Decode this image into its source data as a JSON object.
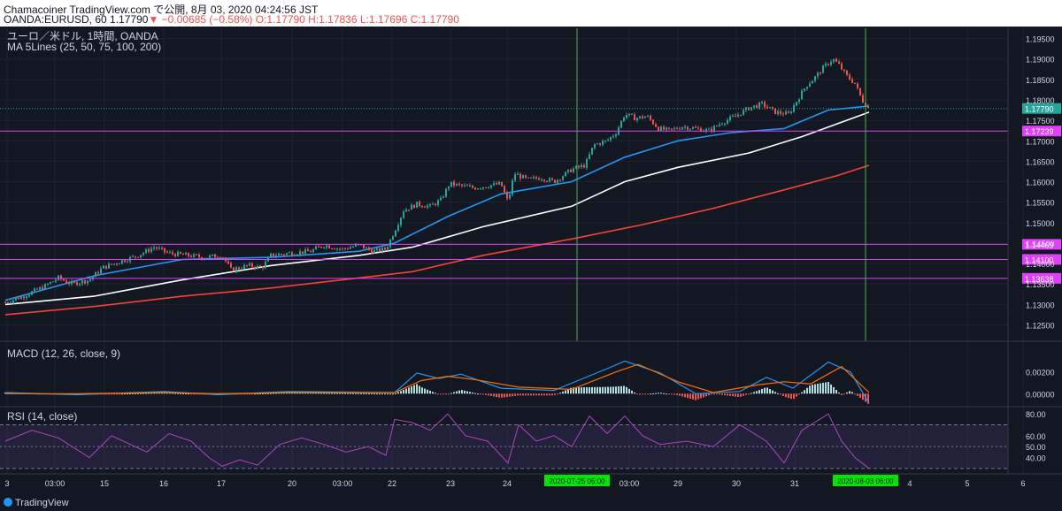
{
  "header": {
    "line1": "Chamacoiner TradingView.com で公開, 8月 03, 2020 04:24:56 JST",
    "symbol": "OANDA:EURUSD, 60",
    "last": "1.17790",
    "arrow": "▼",
    "change": "−0.00685 (−0.58%)",
    "ohlc": "O:1.17790 H:1.17836 L:1.17696 C:1.17790"
  },
  "legend": {
    "title": "ユーロ／米ドル, 1時間, OANDA",
    "ma": "MA 5Lines (25, 50, 75, 100, 200)",
    "macd": "MACD (12, 26, close, 9)",
    "rsi": "RSI (14, close)"
  },
  "footer": {
    "brand": "TradingView"
  },
  "chart_data": [
    {
      "type": "candlestick",
      "symbol": "EUR/USD",
      "timeframe": "1h",
      "y_ticks": [
        "1.19500",
        "1.19000",
        "1.18500",
        "1.18000",
        "1.17500",
        "1.17000",
        "1.16500",
        "1.16000",
        "1.15500",
        "1.15000",
        "1.14500",
        "1.14000",
        "1.13500",
        "1.13000",
        "1.12500"
      ],
      "ylim": [
        1.121,
        1.1975
      ],
      "x_ticks": [
        "3",
        "03:00",
        "15",
        "16",
        "17",
        "20",
        "03:00",
        "22",
        "23",
        "24",
        "03:00",
        "29",
        "30",
        "31",
        "4",
        "5",
        "6"
      ],
      "last_price": 1.1779,
      "horizontal_lines": [
        {
          "price": 1.17239,
          "color": "#e040fb"
        },
        {
          "price": 1.14469,
          "color": "#e040fb"
        },
        {
          "price": 1.141,
          "color": "#e040fb"
        },
        {
          "price": 1.13638,
          "color": "#e040fb"
        }
      ],
      "price_labels": [
        "1.17790",
        "1.17239",
        "1.14469",
        "1.14100",
        "1.13638"
      ],
      "vertical_markers": [
        {
          "label": "2020-07-25  05:00",
          "color": "#4caf50"
        },
        {
          "label": "2020-08-03  06:00",
          "color": "#4caf50"
        }
      ],
      "close_path": [
        [
          0,
          1.1305
        ],
        [
          20,
          1.132
        ],
        [
          45,
          1.1345
        ],
        [
          60,
          1.1365
        ],
        [
          75,
          1.135
        ],
        [
          95,
          1.136
        ],
        [
          110,
          1.139
        ],
        [
          130,
          1.1405
        ],
        [
          150,
          1.142
        ],
        [
          168,
          1.144
        ],
        [
          185,
          1.1425
        ],
        [
          205,
          1.142
        ],
        [
          225,
          1.1415
        ],
        [
          245,
          1.142
        ],
        [
          255,
          1.1385
        ],
        [
          275,
          1.1395
        ],
        [
          290,
          1.139
        ],
        [
          300,
          1.142
        ],
        [
          320,
          1.1425
        ],
        [
          345,
          1.143
        ],
        [
          360,
          1.1445
        ],
        [
          380,
          1.1435
        ],
        [
          400,
          1.1445
        ],
        [
          415,
          1.143
        ],
        [
          430,
          1.1435
        ],
        [
          440,
          1.148
        ],
        [
          450,
          1.153
        ],
        [
          465,
          1.1545
        ],
        [
          480,
          1.154
        ],
        [
          492,
          1.1555
        ],
        [
          502,
          1.1595
        ],
        [
          515,
          1.159
        ],
        [
          530,
          1.1585
        ],
        [
          545,
          1.159
        ],
        [
          560,
          1.1595
        ],
        [
          568,
          1.155
        ],
        [
          575,
          1.162
        ],
        [
          590,
          1.1605
        ],
        [
          605,
          1.161
        ],
        [
          620,
          1.16
        ],
        [
          630,
          1.1615
        ],
        [
          640,
          1.163
        ],
        [
          655,
          1.164
        ],
        [
          665,
          1.169
        ],
        [
          680,
          1.17
        ],
        [
          690,
          1.172
        ],
        [
          700,
          1.1765
        ],
        [
          712,
          1.1755
        ],
        [
          725,
          1.176
        ],
        [
          738,
          1.173
        ],
        [
          750,
          1.1725
        ],
        [
          765,
          1.1735
        ],
        [
          780,
          1.173
        ],
        [
          795,
          1.1725
        ],
        [
          810,
          1.1745
        ],
        [
          825,
          1.176
        ],
        [
          840,
          1.178
        ],
        [
          855,
          1.179
        ],
        [
          870,
          1.177
        ],
        [
          885,
          1.1765
        ],
        [
          895,
          1.18
        ],
        [
          905,
          1.1835
        ],
        [
          915,
          1.1855
        ],
        [
          925,
          1.188
        ],
        [
          935,
          1.19
        ],
        [
          942,
          1.1885
        ],
        [
          950,
          1.186
        ],
        [
          960,
          1.184
        ],
        [
          968,
          1.18
        ],
        [
          976,
          1.1779
        ]
      ],
      "ma_lines": [
        {
          "color": "#2196f3",
          "points": [
            [
              0,
              1.131
            ],
            [
              100,
              1.137
            ],
            [
              200,
              1.141
            ],
            [
              300,
              1.1415
            ],
            [
              400,
              1.143
            ],
            [
              440,
              1.145
            ],
            [
              500,
              1.1515
            ],
            [
              560,
              1.157
            ],
            [
              640,
              1.16
            ],
            [
              700,
              1.166
            ],
            [
              760,
              1.17
            ],
            [
              820,
              1.172
            ],
            [
              880,
              1.173
            ],
            [
              930,
              1.1775
            ],
            [
              976,
              1.1785
            ]
          ]
        },
        {
          "color": "#ffffff",
          "points": [
            [
              0,
              1.13
            ],
            [
              100,
              1.132
            ],
            [
              200,
              1.136
            ],
            [
              300,
              1.1395
            ],
            [
              400,
              1.142
            ],
            [
              460,
              1.144
            ],
            [
              540,
              1.149
            ],
            [
              640,
              1.154
            ],
            [
              700,
              1.16
            ],
            [
              760,
              1.1635
            ],
            [
              840,
              1.167
            ],
            [
              900,
              1.171
            ],
            [
              976,
              1.177
            ]
          ]
        },
        {
          "color": "#f44336",
          "points": [
            [
              0,
              1.1275
            ],
            [
              100,
              1.1295
            ],
            [
              200,
              1.132
            ],
            [
              300,
              1.134
            ],
            [
              400,
              1.1365
            ],
            [
              460,
              1.138
            ],
            [
              540,
              1.142
            ],
            [
              640,
              1.146
            ],
            [
              720,
              1.1495
            ],
            [
              800,
              1.1535
            ],
            [
              880,
              1.158
            ],
            [
              940,
              1.1615
            ],
            [
              976,
              1.164
            ]
          ]
        }
      ]
    },
    {
      "type": "bar+line",
      "name": "MACD (12, 26, close, 9)",
      "y_ticks": [
        "0.00200",
        "0.00000"
      ],
      "ylim": [
        -0.0012,
        0.0045
      ],
      "macd": [
        [
          0,
          0.0001
        ],
        [
          80,
          -0.0001
        ],
        [
          180,
          0.0002
        ],
        [
          240,
          -0.0001
        ],
        [
          320,
          0.0002
        ],
        [
          440,
          0.0001
        ],
        [
          465,
          0.0019
        ],
        [
          490,
          0.0014
        ],
        [
          515,
          0.0018
        ],
        [
          560,
          0.0005
        ],
        [
          620,
          0.0003
        ],
        [
          680,
          0.0023
        ],
        [
          700,
          0.003
        ],
        [
          740,
          0.0019
        ],
        [
          780,
          0.0
        ],
        [
          830,
          0.0002
        ],
        [
          860,
          0.0015
        ],
        [
          890,
          0.0005
        ],
        [
          930,
          0.0029
        ],
        [
          955,
          0.002
        ],
        [
          976,
          -0.0009
        ]
      ],
      "signal": [
        [
          0,
          0.0
        ],
        [
          80,
          0.0
        ],
        [
          180,
          0.0001
        ],
        [
          240,
          0.0
        ],
        [
          320,
          0.0001
        ],
        [
          440,
          0.0001
        ],
        [
          470,
          0.0012
        ],
        [
          500,
          0.0016
        ],
        [
          530,
          0.0013
        ],
        [
          580,
          0.0006
        ],
        [
          640,
          0.0004
        ],
        [
          690,
          0.002
        ],
        [
          715,
          0.0027
        ],
        [
          760,
          0.0011
        ],
        [
          800,
          0.0001
        ],
        [
          850,
          0.0008
        ],
        [
          880,
          0.0011
        ],
        [
          910,
          0.0009
        ],
        [
          945,
          0.0025
        ],
        [
          976,
          0.0001
        ]
      ]
    },
    {
      "type": "line",
      "name": "RSI (14, close)",
      "y_ticks": [
        "80.00",
        "60.00",
        "50.00",
        "40.00"
      ],
      "ylim": [
        25,
        85
      ],
      "bands": [
        30,
        70
      ],
      "values": [
        [
          0,
          55
        ],
        [
          30,
          65
        ],
        [
          60,
          58
        ],
        [
          95,
          40
        ],
        [
          120,
          60
        ],
        [
          160,
          45
        ],
        [
          185,
          62
        ],
        [
          210,
          55
        ],
        [
          230,
          40
        ],
        [
          245,
          32
        ],
        [
          265,
          38
        ],
        [
          285,
          33
        ],
        [
          310,
          52
        ],
        [
          335,
          58
        ],
        [
          360,
          52
        ],
        [
          385,
          45
        ],
        [
          410,
          50
        ],
        [
          430,
          42
        ],
        [
          440,
          75
        ],
        [
          460,
          72
        ],
        [
          480,
          65
        ],
        [
          500,
          80
        ],
        [
          520,
          60
        ],
        [
          545,
          55
        ],
        [
          568,
          35
        ],
        [
          580,
          70
        ],
        [
          600,
          55
        ],
        [
          620,
          60
        ],
        [
          640,
          50
        ],
        [
          660,
          78
        ],
        [
          680,
          62
        ],
        [
          700,
          78
        ],
        [
          720,
          60
        ],
        [
          740,
          52
        ],
        [
          770,
          55
        ],
        [
          800,
          50
        ],
        [
          830,
          70
        ],
        [
          860,
          55
        ],
        [
          880,
          35
        ],
        [
          900,
          65
        ],
        [
          930,
          80
        ],
        [
          945,
          55
        ],
        [
          960,
          40
        ],
        [
          976,
          30
        ]
      ]
    }
  ]
}
